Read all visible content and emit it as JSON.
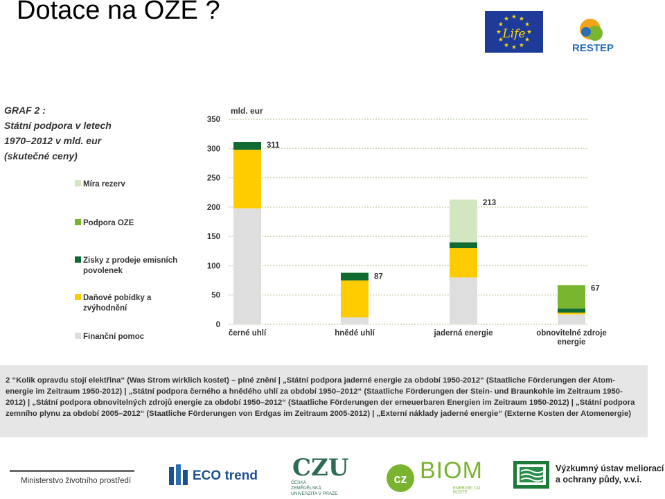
{
  "slide_title": "Dotace na OZE ?",
  "logos": {
    "eu_life": "Life",
    "restep": "RESTEP",
    "ministry": "Ministerstvo životního prostředí",
    "ecotrend": "ECO trend",
    "czu_lines": [
      "ČESKÁ",
      "ZEMĚDĚLSKÁ",
      "UNIVERZITA V PRAZE"
    ],
    "czu_mark": "CZU",
    "czbiom_mark": "cz",
    "czbiom": "BIOM",
    "czbiom_sub": "ENERGIE, CO ROSTE",
    "vumop_line1": "Výzkumný ústav meliorací",
    "vumop_line2": "a ochrany půdy, v.v.i."
  },
  "colors": {
    "financni_pomoc": "#dedede",
    "danove_pobidky": "#ffcc00",
    "zisky_emisni": "#0f6b32",
    "podpora_oze": "#7ab530",
    "mira_rezerv": "#d4e6c1",
    "caption_bg": "#e6e6e6"
  },
  "chart_data": {
    "type": "bar",
    "stacked": true,
    "title": "GRAF 2 :",
    "subtitle": [
      "Státní podpora v letech",
      "1970–2012 v mld. eur",
      "(skutečné ceny)"
    ],
    "ylabel": "mld. eur",
    "ylim": [
      0,
      350
    ],
    "yticks": [
      0,
      50,
      100,
      150,
      200,
      250,
      300,
      350
    ],
    "grid": true,
    "legend_position": "left",
    "categories": [
      [
        "černé uhlí"
      ],
      [
        "hnědé uhlí"
      ],
      [
        "jaderná energie"
      ],
      [
        "obnovitelné zdroje",
        "energie"
      ]
    ],
    "totals": [
      311,
      87,
      213,
      67
    ],
    "series": [
      {
        "name": "Finanční pomoc",
        "color_key": "financni_pomoc",
        "legend_lines": [
          "Finanční pomoc"
        ],
        "values": [
          198,
          12,
          80,
          17
        ]
      },
      {
        "name": "Daňové pobídky a zvýhodnění",
        "color_key": "danove_pobidky",
        "legend_lines": [
          "Daňové pobídky a",
          "zvýhodnění"
        ],
        "values": [
          100,
          63,
          50,
          3
        ]
      },
      {
        "name": "Zisky z prodeje emisních povolenek",
        "color_key": "zisky_emisni",
        "legend_lines": [
          "Zisky z prodeje emisních",
          "povolenek"
        ],
        "values": [
          13,
          13,
          10,
          7
        ]
      },
      {
        "name": "Podpora OZE",
        "color_key": "podpora_oze",
        "legend_lines": [
          "Podpora OZE"
        ],
        "values": [
          0,
          0,
          0,
          40
        ]
      },
      {
        "name": "Míra rezerv",
        "color_key": "mira_rezerv",
        "legend_lines": [
          "Míra rezerv"
        ],
        "values": [
          0,
          0,
          73,
          0
        ]
      }
    ]
  },
  "caption": "2 “Kolik opravdu stojí elektřina“ (Was Strom wirklich kostet) – plné znění | „Státní podpora jaderné energie za období 1950-2012“ (Staatliche Förderungen der Atom-energie im Zeitraum 1950-2012) | „Státní podpora černého a hnědého uhlí za období 1950–2012“ (Staatliche Förderungen der Stein- und Braunkohle im Zeitraum 1950-2012) | „Státní podpora obnovitelných zdrojů energie za období 1950–2012“ (Staatliche Förderungen der erneuerbaren Energien im Zeitraum 1950-2012) | „Státní podpora zemního plynu za období 2005–2012“ (Staatliche Förderungen von Erdgas im Zeitraum 2005-2012) | „Externí náklady jaderné energie“ (Externe Kosten der Atomenergie)"
}
